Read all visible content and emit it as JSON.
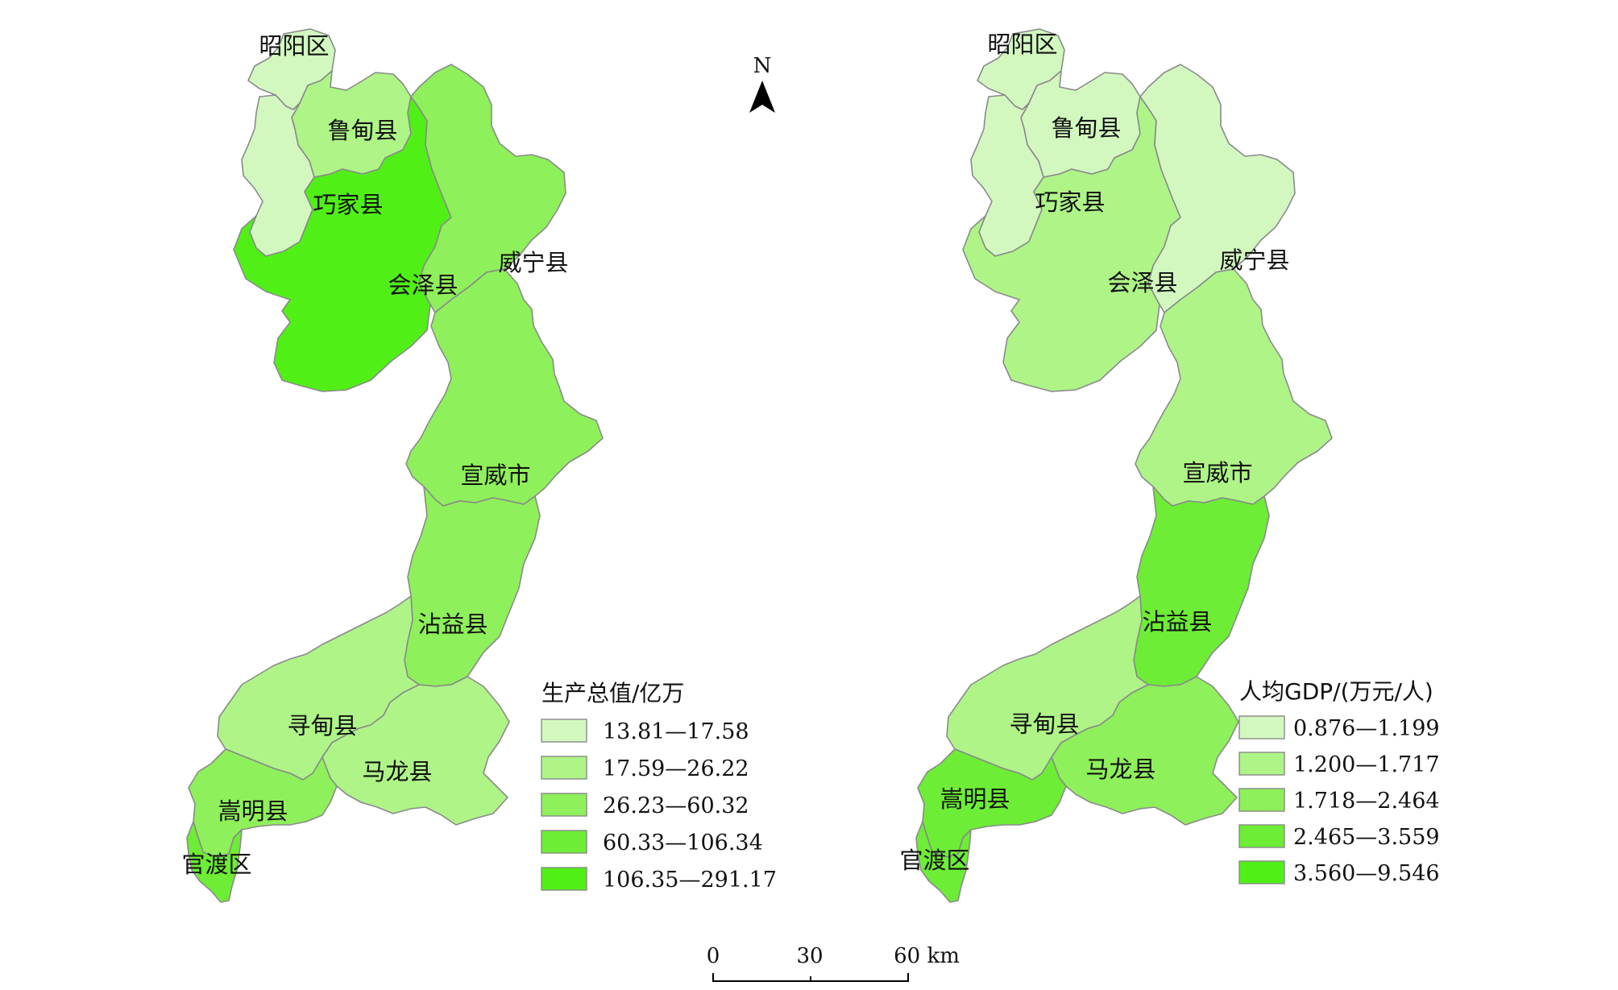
{
  "colors": {
    "c1": "#d2f8c0",
    "c2": "#aef487",
    "c3": "#8ef05a",
    "c4": "#6ded35",
    "c5": "#50f016",
    "border": "#8a8a8a"
  },
  "north": {
    "label": "N",
    "icon": "north-arrow-icon"
  },
  "left_map": {
    "legend_title": "生产总值/亿万",
    "legend": [
      "13.81—17.58",
      "17.59—26.22",
      "26.23—60.32",
      "60.33—106.34",
      "106.35—291.17"
    ],
    "counties": [
      {
        "name": "昭阳区",
        "class": 1
      },
      {
        "name": "鲁甸县",
        "class": 2
      },
      {
        "name": "巧家县",
        "class": 1
      },
      {
        "name": "会泽县",
        "class": 5
      },
      {
        "name": "威宁县",
        "class": 3
      },
      {
        "name": "宣威市",
        "class": 3
      },
      {
        "name": "沾益县",
        "class": 3
      },
      {
        "name": "寻甸县",
        "class": 2
      },
      {
        "name": "马龙县",
        "class": 2
      },
      {
        "name": "嵩明县",
        "class": 3
      },
      {
        "name": "官渡区",
        "class": 4
      }
    ]
  },
  "right_map": {
    "legend_title": "人均GDP/(万元/人)",
    "legend": [
      "0.876—1.199",
      "1.200—1.717",
      "1.718—2.464",
      "2.465—3.559",
      "3.560—9.546"
    ],
    "counties": [
      {
        "name": "昭阳区",
        "class": 1
      },
      {
        "name": "鲁甸县",
        "class": 1
      },
      {
        "name": "巧家县",
        "class": 1
      },
      {
        "name": "会泽县",
        "class": 2
      },
      {
        "name": "威宁县",
        "class": 1
      },
      {
        "name": "宣威市",
        "class": 2
      },
      {
        "name": "沾益县",
        "class": 4
      },
      {
        "name": "寻甸县",
        "class": 2
      },
      {
        "name": "马龙县",
        "class": 3
      },
      {
        "name": "嵩明县",
        "class": 4
      },
      {
        "name": "官渡区",
        "class": 4
      }
    ]
  },
  "scale_bar": {
    "ticks": [
      "0",
      "30",
      "60 km"
    ]
  }
}
